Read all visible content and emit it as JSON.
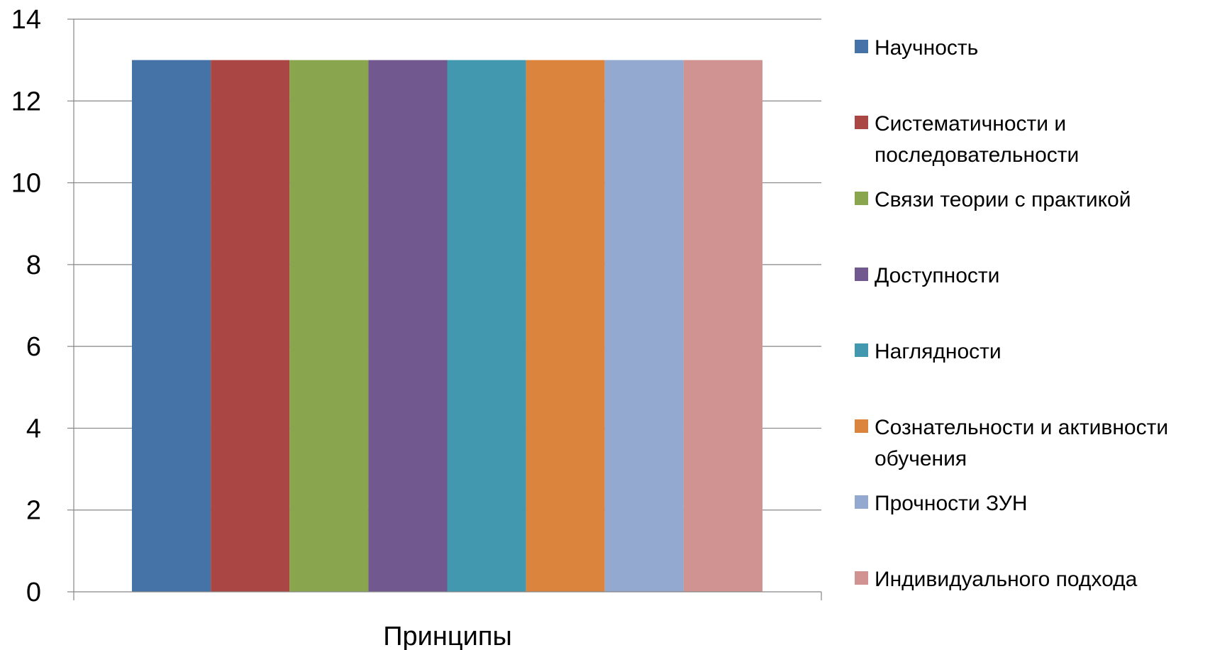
{
  "chart_data": {
    "type": "bar",
    "title": "",
    "xlabel": "",
    "ylabel": "",
    "categories": [
      "Принципы"
    ],
    "ylim": [
      0,
      14
    ],
    "y_ticks": [
      0,
      2,
      4,
      6,
      8,
      10,
      12,
      14
    ],
    "grid": true,
    "legend_position": "right",
    "series": [
      {
        "name": "Научность",
        "values": [
          13
        ],
        "color": "#4572A7"
      },
      {
        "name": "Систематичности и последовательности",
        "values": [
          13
        ],
        "color": "#AA4643"
      },
      {
        "name": "Связи теории с практикой",
        "values": [
          13
        ],
        "color": "#89A54E"
      },
      {
        "name": "Доступности",
        "values": [
          13
        ],
        "color": "#71588F"
      },
      {
        "name": "Наглядности",
        "values": [
          13
        ],
        "color": "#4198AF"
      },
      {
        "name": "Сознательности и активности обучения",
        "values": [
          13
        ],
        "color": "#DB843D"
      },
      {
        "name": "Прочности ЗУН",
        "values": [
          13
        ],
        "color": "#93A9CF"
      },
      {
        "name": "Индивидуального подхода",
        "values": [
          13
        ],
        "color": "#D19392"
      }
    ]
  }
}
